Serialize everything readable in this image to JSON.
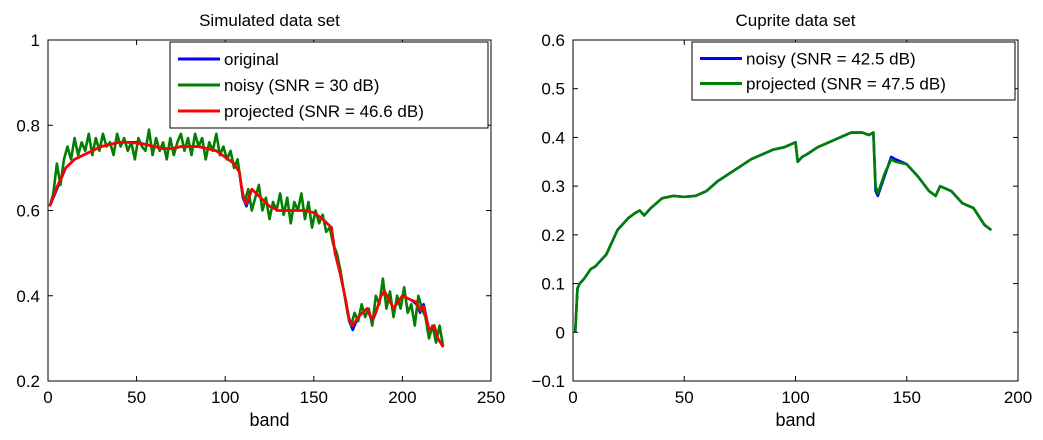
{
  "chart_data": [
    {
      "type": "line",
      "title": "Simulated data set",
      "xlabel": "band",
      "ylabel": "",
      "xlim": [
        0,
        250
      ],
      "ylim": [
        0.2,
        1
      ],
      "xticks": [
        "0",
        "50",
        "100",
        "150",
        "200",
        "250"
      ],
      "yticks": [
        "0.2",
        "0.4",
        "0.6",
        "0.8",
        "1"
      ],
      "legend_position": "top-right",
      "series": [
        {
          "name": "original",
          "color": "#0000ff",
          "x": [
            1,
            5,
            10,
            15,
            20,
            25,
            30,
            35,
            40,
            45,
            50,
            55,
            60,
            65,
            70,
            75,
            80,
            85,
            90,
            95,
            100,
            105,
            108,
            110,
            112,
            115,
            120,
            125,
            130,
            135,
            140,
            145,
            150,
            155,
            160,
            162,
            165,
            168,
            170,
            172,
            175,
            180,
            183,
            185,
            188,
            190,
            195,
            200,
            205,
            208,
            210,
            212,
            215,
            218,
            220,
            223
          ],
          "y": [
            0.61,
            0.65,
            0.7,
            0.72,
            0.73,
            0.74,
            0.75,
            0.755,
            0.76,
            0.76,
            0.76,
            0.755,
            0.75,
            0.745,
            0.745,
            0.75,
            0.75,
            0.75,
            0.745,
            0.74,
            0.725,
            0.71,
            0.69,
            0.63,
            0.61,
            0.65,
            0.63,
            0.61,
            0.6,
            0.6,
            0.6,
            0.6,
            0.595,
            0.58,
            0.56,
            0.5,
            0.45,
            0.39,
            0.34,
            0.32,
            0.35,
            0.37,
            0.34,
            0.36,
            0.4,
            0.41,
            0.37,
            0.4,
            0.39,
            0.38,
            0.36,
            0.38,
            0.32,
            0.33,
            0.3,
            0.28
          ]
        },
        {
          "name": "noisy (SNR = 30 dB)",
          "color": "#008000",
          "x": [
            1,
            3,
            5,
            7,
            9,
            11,
            13,
            15,
            17,
            19,
            21,
            23,
            25,
            27,
            29,
            31,
            33,
            35,
            37,
            39,
            41,
            43,
            45,
            47,
            49,
            51,
            53,
            55,
            57,
            59,
            61,
            63,
            65,
            67,
            69,
            71,
            73,
            75,
            77,
            79,
            81,
            83,
            85,
            87,
            89,
            91,
            93,
            95,
            97,
            99,
            101,
            103,
            105,
            107,
            109,
            111,
            113,
            115,
            117,
            119,
            121,
            123,
            125,
            127,
            129,
            131,
            133,
            135,
            137,
            139,
            141,
            143,
            145,
            147,
            149,
            151,
            153,
            155,
            157,
            159,
            161,
            163,
            165,
            167,
            169,
            171,
            173,
            175,
            177,
            179,
            181,
            183,
            185,
            187,
            189,
            191,
            193,
            195,
            197,
            199,
            201,
            203,
            205,
            207,
            209,
            211,
            213,
            215,
            217,
            219,
            221,
            223
          ],
          "y": [
            0.61,
            0.64,
            0.71,
            0.66,
            0.72,
            0.75,
            0.72,
            0.77,
            0.73,
            0.76,
            0.74,
            0.78,
            0.73,
            0.77,
            0.74,
            0.78,
            0.75,
            0.76,
            0.73,
            0.78,
            0.75,
            0.77,
            0.74,
            0.76,
            0.72,
            0.77,
            0.75,
            0.74,
            0.79,
            0.73,
            0.77,
            0.74,
            0.76,
            0.72,
            0.77,
            0.73,
            0.76,
            0.78,
            0.74,
            0.77,
            0.73,
            0.78,
            0.75,
            0.77,
            0.72,
            0.76,
            0.74,
            0.78,
            0.73,
            0.75,
            0.72,
            0.74,
            0.7,
            0.72,
            0.66,
            0.62,
            0.65,
            0.6,
            0.63,
            0.66,
            0.6,
            0.63,
            0.58,
            0.62,
            0.6,
            0.64,
            0.59,
            0.63,
            0.57,
            0.62,
            0.6,
            0.64,
            0.58,
            0.62,
            0.56,
            0.6,
            0.57,
            0.59,
            0.55,
            0.56,
            0.52,
            0.5,
            0.46,
            0.41,
            0.36,
            0.33,
            0.36,
            0.34,
            0.38,
            0.35,
            0.37,
            0.33,
            0.4,
            0.38,
            0.44,
            0.37,
            0.41,
            0.35,
            0.4,
            0.37,
            0.42,
            0.36,
            0.38,
            0.33,
            0.4,
            0.37,
            0.35,
            0.3,
            0.33,
            0.29,
            0.33,
            0.28
          ]
        },
        {
          "name": "projected (SNR = 46.6 dB)",
          "color": "#ff0000",
          "x": [
            1,
            5,
            10,
            15,
            20,
            25,
            30,
            35,
            40,
            45,
            50,
            55,
            60,
            65,
            70,
            75,
            80,
            85,
            90,
            95,
            100,
            105,
            108,
            110,
            112,
            115,
            120,
            125,
            130,
            135,
            140,
            145,
            150,
            155,
            160,
            162,
            165,
            168,
            170,
            172,
            175,
            180,
            183,
            185,
            188,
            190,
            195,
            200,
            205,
            208,
            210,
            212,
            215,
            218,
            220,
            223
          ],
          "y": [
            0.61,
            0.655,
            0.7,
            0.72,
            0.73,
            0.74,
            0.75,
            0.755,
            0.76,
            0.76,
            0.758,
            0.755,
            0.75,
            0.745,
            0.745,
            0.75,
            0.75,
            0.75,
            0.745,
            0.74,
            0.725,
            0.71,
            0.69,
            0.635,
            0.615,
            0.65,
            0.63,
            0.61,
            0.6,
            0.6,
            0.6,
            0.6,
            0.595,
            0.58,
            0.56,
            0.5,
            0.45,
            0.39,
            0.345,
            0.33,
            0.35,
            0.37,
            0.345,
            0.36,
            0.4,
            0.41,
            0.37,
            0.4,
            0.39,
            0.385,
            0.365,
            0.375,
            0.32,
            0.33,
            0.3,
            0.28
          ]
        }
      ]
    },
    {
      "type": "line",
      "title": "Cuprite data set",
      "xlabel": "band",
      "ylabel": "",
      "xlim": [
        0,
        200
      ],
      "ylim": [
        -0.1,
        0.6
      ],
      "xticks": [
        "0",
        "50",
        "100",
        "150",
        "200"
      ],
      "yticks": [
        "−0.1",
        "0",
        "0.1",
        "0.2",
        "0.3",
        "0.4",
        "0.5",
        "0.6"
      ],
      "legend_position": "top-right",
      "series": [
        {
          "name": "noisy (SNR = 42.5 dB)",
          "color": "#0000ff",
          "x": [
            1,
            2,
            3,
            5,
            8,
            10,
            15,
            20,
            25,
            28,
            30,
            32,
            35,
            40,
            45,
            50,
            55,
            60,
            65,
            70,
            75,
            80,
            85,
            90,
            95,
            100,
            101,
            103,
            105,
            110,
            115,
            120,
            125,
            130,
            133,
            135,
            136,
            137,
            140,
            143,
            145,
            150,
            155,
            160,
            163,
            165,
            170,
            175,
            180,
            185,
            188
          ],
          "y": [
            0.0,
            0.09,
            0.1,
            0.11,
            0.13,
            0.135,
            0.16,
            0.21,
            0.235,
            0.245,
            0.25,
            0.24,
            0.255,
            0.275,
            0.28,
            0.278,
            0.28,
            0.29,
            0.31,
            0.325,
            0.34,
            0.355,
            0.365,
            0.375,
            0.38,
            0.39,
            0.35,
            0.36,
            0.365,
            0.38,
            0.39,
            0.4,
            0.41,
            0.41,
            0.405,
            0.41,
            0.29,
            0.28,
            0.32,
            0.36,
            0.355,
            0.345,
            0.32,
            0.29,
            0.28,
            0.3,
            0.29,
            0.265,
            0.255,
            0.22,
            0.21
          ]
        },
        {
          "name": "projected (SNR = 47.5 dB)",
          "color": "#008000",
          "x": [
            1,
            2,
            3,
            5,
            8,
            10,
            15,
            20,
            25,
            28,
            30,
            32,
            35,
            40,
            45,
            50,
            55,
            60,
            65,
            70,
            75,
            80,
            85,
            90,
            95,
            100,
            101,
            103,
            105,
            110,
            115,
            120,
            125,
            130,
            133,
            135,
            136,
            137,
            140,
            143,
            145,
            150,
            155,
            160,
            163,
            165,
            170,
            175,
            180,
            185,
            188
          ],
          "y": [
            0.0,
            0.09,
            0.1,
            0.11,
            0.13,
            0.135,
            0.16,
            0.21,
            0.235,
            0.245,
            0.25,
            0.24,
            0.255,
            0.275,
            0.28,
            0.278,
            0.28,
            0.29,
            0.31,
            0.325,
            0.34,
            0.355,
            0.365,
            0.375,
            0.38,
            0.39,
            0.35,
            0.36,
            0.365,
            0.38,
            0.39,
            0.4,
            0.41,
            0.41,
            0.405,
            0.41,
            0.3,
            0.285,
            0.325,
            0.355,
            0.35,
            0.345,
            0.32,
            0.29,
            0.28,
            0.3,
            0.29,
            0.265,
            0.255,
            0.22,
            0.21
          ]
        }
      ]
    }
  ]
}
